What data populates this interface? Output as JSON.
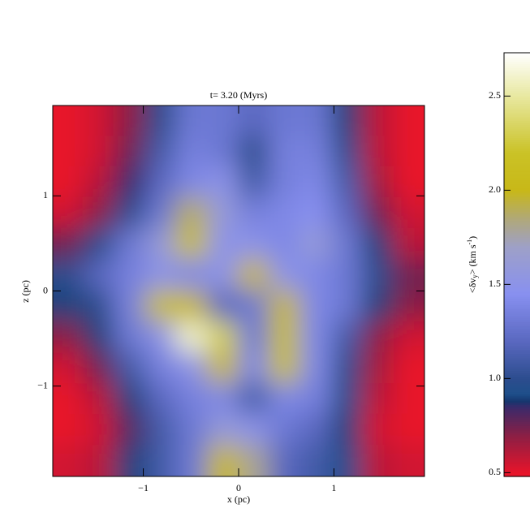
{
  "chart_data": {
    "type": "heatmap",
    "title": "t=  3.20 (Myrs)",
    "x_label": "x (pc)",
    "y_label": "z (pc)",
    "colorbar_label_parts": [
      "<δv",
      "y",
      "> (km s",
      "-1",
      ")"
    ],
    "xlim": [
      -1.95,
      1.95
    ],
    "ylim": [
      -1.95,
      1.95
    ],
    "xticks": [
      {
        "value": -1,
        "label": "−1"
      },
      0,
      1
    ],
    "yticks": [
      {
        "value": -1,
        "label": "−1"
      },
      0,
      1
    ],
    "clim": [
      0.48,
      2.73
    ],
    "cticks": [
      0.5,
      {
        "value": 1,
        "label": "1.0"
      },
      1.5,
      {
        "value": 2,
        "label": "2.0"
      },
      2.5
    ],
    "x": [
      -1.79,
      -1.46,
      -1.14,
      -0.81,
      -0.49,
      -0.16,
      0.16,
      0.49,
      0.81,
      1.14,
      1.46,
      1.79
    ],
    "y": [
      1.79,
      1.46,
      1.14,
      0.81,
      0.49,
      0.16,
      -0.16,
      -0.49,
      -0.81,
      -1.14,
      -1.46,
      -1.79
    ],
    "z": [
      [
        0.5,
        0.55,
        0.7,
        1.0,
        1.3,
        1.3,
        1.2,
        1.3,
        1.3,
        0.9,
        0.6,
        0.5
      ],
      [
        0.5,
        0.55,
        0.75,
        1.1,
        1.35,
        1.3,
        1.0,
        1.35,
        1.35,
        1.0,
        0.6,
        0.5
      ],
      [
        0.5,
        0.6,
        0.85,
        1.2,
        1.4,
        1.5,
        1.1,
        1.35,
        1.4,
        1.1,
        0.65,
        0.5
      ],
      [
        0.55,
        0.7,
        1.0,
        1.3,
        1.9,
        1.6,
        1.35,
        1.4,
        1.45,
        1.2,
        0.75,
        0.55
      ],
      [
        0.75,
        0.95,
        1.3,
        1.6,
        2.1,
        1.5,
        1.5,
        1.4,
        1.6,
        1.3,
        0.9,
        0.6
      ],
      [
        1.0,
        1.2,
        1.35,
        1.5,
        1.4,
        1.5,
        2.0,
        1.5,
        1.4,
        1.3,
        1.0,
        0.75
      ],
      [
        0.9,
        1.0,
        1.35,
        2.1,
        2.0,
        1.2,
        1.3,
        2.0,
        1.4,
        1.3,
        0.9,
        0.7
      ],
      [
        0.7,
        0.9,
        1.3,
        1.5,
        2.6,
        2.3,
        1.3,
        2.1,
        1.4,
        1.1,
        0.7,
        0.55
      ],
      [
        0.55,
        0.75,
        1.1,
        1.35,
        1.5,
        2.0,
        1.4,
        2.1,
        1.4,
        1.0,
        0.65,
        0.5
      ],
      [
        0.5,
        0.6,
        0.9,
        1.2,
        1.35,
        1.4,
        1.1,
        1.4,
        1.35,
        0.95,
        0.6,
        0.5
      ],
      [
        0.5,
        0.55,
        0.8,
        1.1,
        1.3,
        1.6,
        1.5,
        1.3,
        1.2,
        0.9,
        0.55,
        0.5
      ],
      [
        0.55,
        0.6,
        0.9,
        1.1,
        1.3,
        2.0,
        1.8,
        1.2,
        1.1,
        0.95,
        0.6,
        0.55
      ]
    ]
  }
}
